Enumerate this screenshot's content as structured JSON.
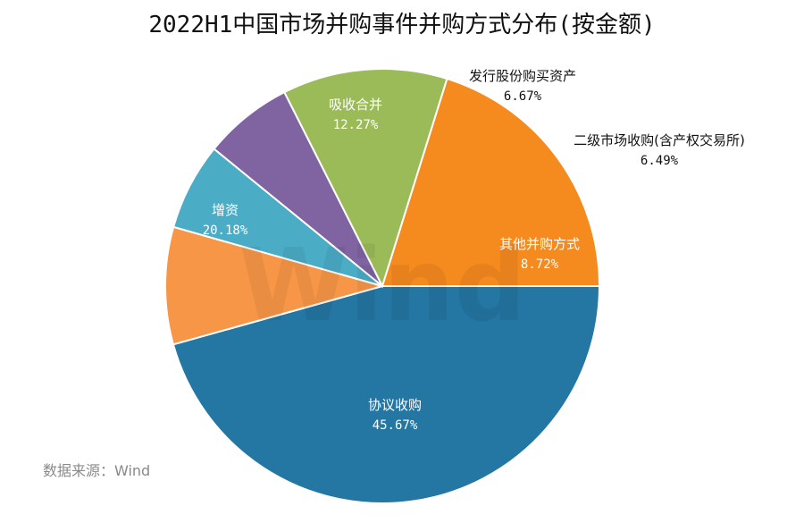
{
  "chart_data": {
    "type": "pie",
    "title": "2022H1中国市场并购事件并购方式分布(按金额)",
    "slices": [
      {
        "label": "协议收购",
        "value": 45.67,
        "display": "45.67%",
        "color": "#2476a3"
      },
      {
        "label": "其他并购方式",
        "value": 8.72,
        "display": "8.72%",
        "color": "#f79646"
      },
      {
        "label": "二级市场收购(含产权交易所)",
        "value": 6.49,
        "display": "6.49%",
        "color": "#4bacc6"
      },
      {
        "label": "发行股份购买资产",
        "value": 6.67,
        "display": "6.67%",
        "color": "#8064a2"
      },
      {
        "label": "吸收合并",
        "value": 12.27,
        "display": "12.27%",
        "color": "#9bbb59"
      },
      {
        "label": "增资",
        "value": 20.18,
        "display": "20.18%",
        "color": "#f58a1f"
      }
    ],
    "start_angle_deg": 0,
    "direction": "clockwise-from-3-oclock"
  },
  "source": "数据来源：Wind",
  "watermark": "Wind"
}
